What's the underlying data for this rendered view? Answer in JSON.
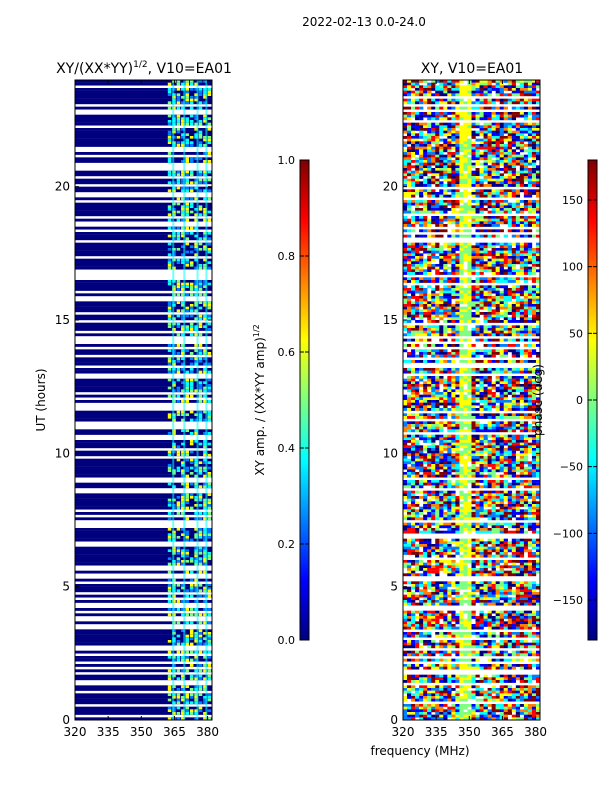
{
  "figure_title": "2022-02-13 0.0-24.0",
  "colors": {
    "jet": [
      "#00007f",
      "#0000ff",
      "#007fff",
      "#00ffff",
      "#7fff7f",
      "#ffff00",
      "#ff7f00",
      "#ff0000",
      "#7f0000"
    ]
  },
  "chart_data": [
    {
      "type": "heatmap",
      "title_prefix": "XY/(XX*YY)",
      "title_sup": "1/2",
      "title_suffix": ", V10=EA01",
      "xlabel": "",
      "ylabel": "UT (hours)",
      "xlim": [
        320,
        382
      ],
      "ylim": [
        0,
        24
      ],
      "xticks": [
        320,
        335,
        350,
        365,
        380
      ],
      "yticks": [
        0,
        5,
        10,
        15,
        20
      ],
      "colorbar": {
        "label": "XY amp. / (XX*YY amp)",
        "label_sup": "1/2",
        "range": [
          0.0,
          1.0
        ],
        "ticks": [
          "0.0",
          "0.2",
          "0.4",
          "0.6",
          "0.8",
          "1.0"
        ]
      }
    },
    {
      "type": "heatmap",
      "title": "XY, V10=EA01",
      "xlabel": "frequency (MHz)",
      "ylabel": "",
      "xlim": [
        320,
        382
      ],
      "ylim": [
        0,
        24
      ],
      "xticks": [
        320,
        335,
        350,
        365,
        380
      ],
      "yticks": [
        0,
        5,
        10,
        15,
        20
      ],
      "colorbar": {
        "label": "phase (deg)",
        "range": [
          -180,
          180
        ],
        "ticks": [
          "150",
          "100",
          "50",
          "0",
          "−50",
          "−100",
          "−150"
        ]
      }
    }
  ]
}
